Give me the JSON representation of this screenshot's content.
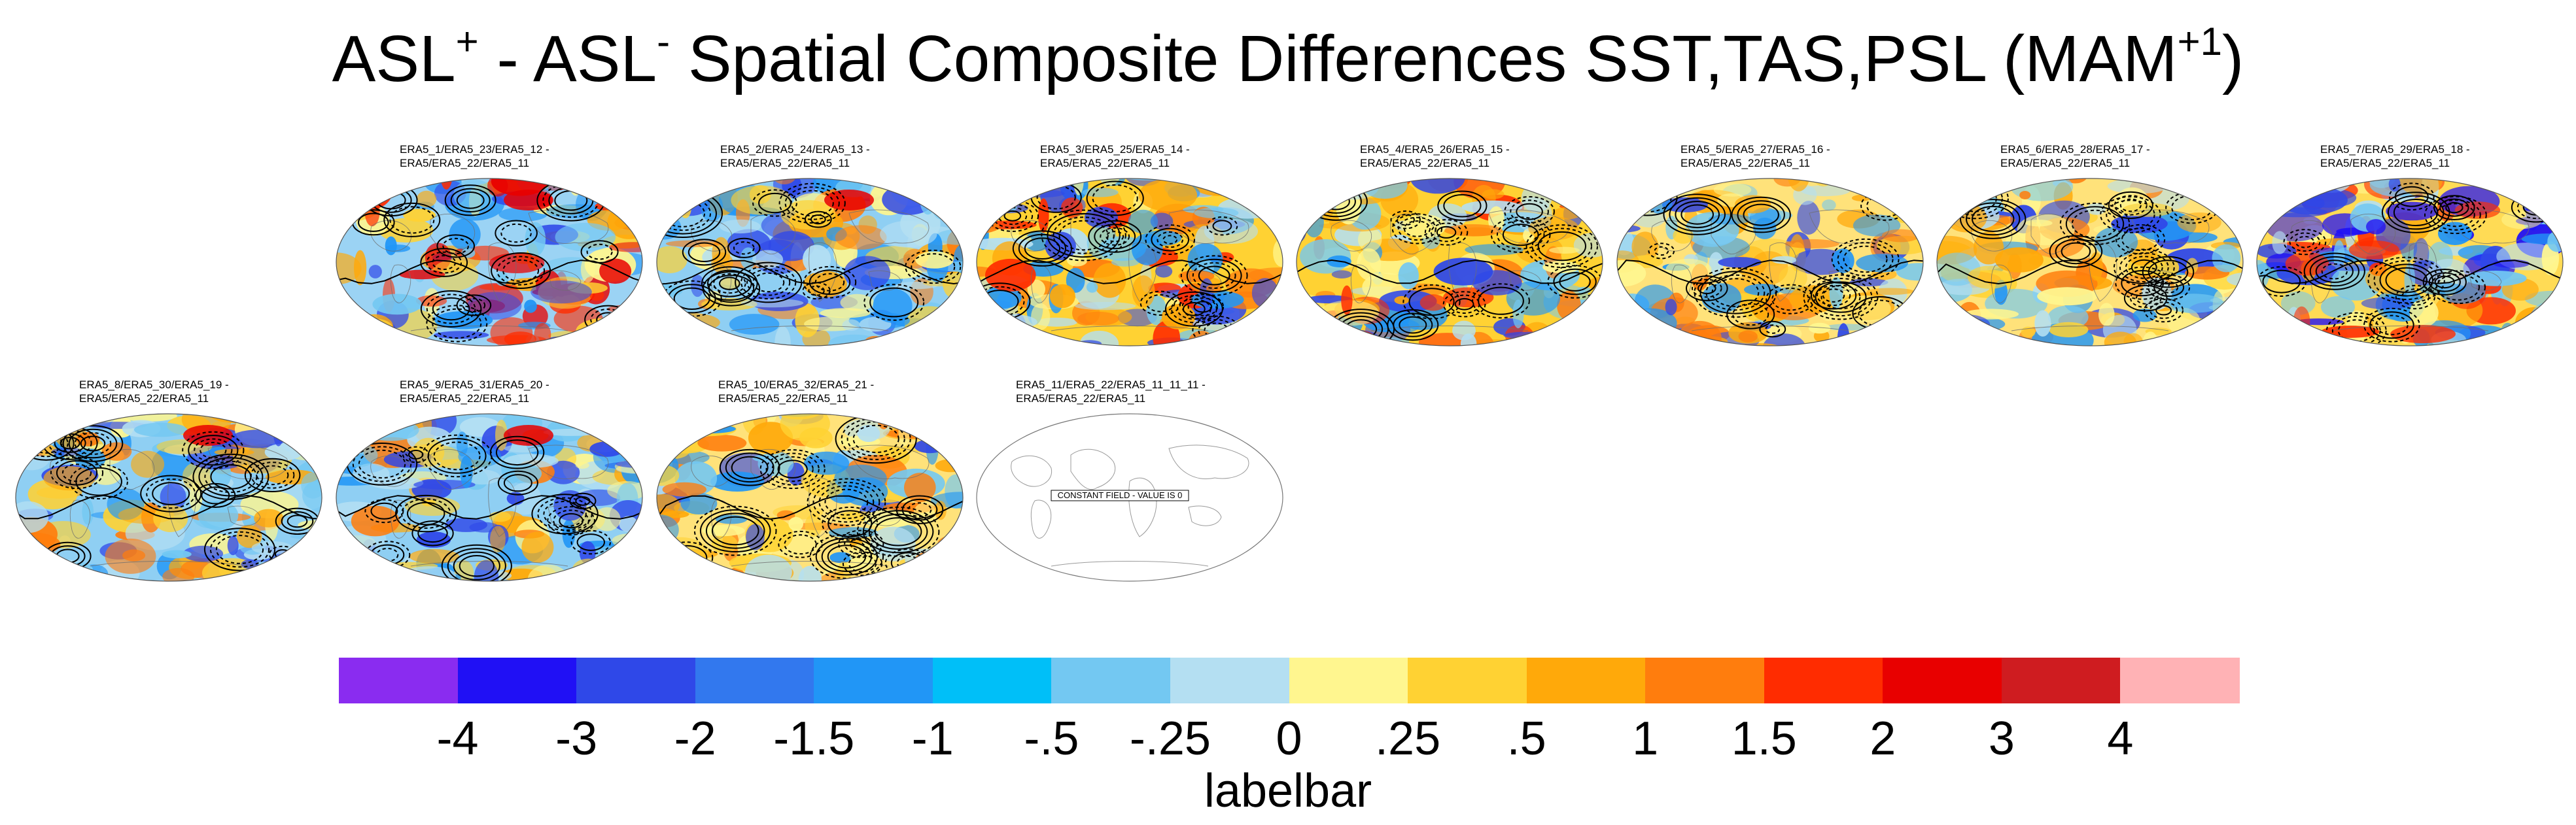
{
  "title": {
    "part1": "ASL",
    "sup1": "+",
    "part2": " - ASL",
    "sup2": "-",
    "part3": " Spatial Composite Differences SST,TAS,PSL (MAM",
    "sup3": "+1",
    "part4": ")"
  },
  "panels": [
    {
      "line1": "ERA5_1/ERA5_23/ERA5_12 -",
      "line2": "ERA5/ERA5_22/ERA5_11",
      "type": "field",
      "palette": "red-north"
    },
    {
      "line1": "ERA5_2/ERA5_24/ERA5_13 -",
      "line2": "ERA5/ERA5_22/ERA5_11",
      "type": "field",
      "palette": "blue"
    },
    {
      "line1": "ERA5_3/ERA5_25/ERA5_14 -",
      "line2": "ERA5/ERA5_22/ERA5_11",
      "type": "field",
      "palette": "warm"
    },
    {
      "line1": "ERA5_4/ERA5_26/ERA5_15 -",
      "line2": "ERA5/ERA5_22/ERA5_11",
      "type": "field",
      "palette": "warm"
    },
    {
      "line1": "ERA5_5/ERA5_27/ERA5_16 -",
      "line2": "ERA5/ERA5_22/ERA5_11",
      "type": "field",
      "palette": "mixed"
    },
    {
      "line1": "ERA5_6/ERA5_28/ERA5_17 -",
      "line2": "ERA5/ERA5_22/ERA5_11",
      "type": "field",
      "palette": "mixed"
    },
    {
      "line1": "ERA5_7/ERA5_29/ERA5_18 -",
      "line2": "ERA5/ERA5_22/ERA5_11",
      "type": "field",
      "palette": "blue-north"
    },
    {
      "line1": "ERA5_8/ERA5_30/ERA5_19 -",
      "line2": "ERA5/ERA5_22/ERA5_11",
      "type": "field",
      "palette": "blue"
    },
    {
      "line1": "ERA5_9/ERA5_31/ERA5_20 -",
      "line2": "ERA5/ERA5_22/ERA5_11",
      "type": "field",
      "palette": "blue"
    },
    {
      "line1": "ERA5_10/ERA5_32/ERA5_21 -",
      "line2": "ERA5/ERA5_22/ERA5_11",
      "type": "field",
      "palette": "mixed"
    },
    {
      "line1": "ERA5_11/ERA5_22/ERA5_11_11_11 -",
      "line2": "ERA5/ERA5_22/ERA5_11",
      "type": "constant",
      "constant_text": "CONSTANT FIELD - VALUE IS 0"
    }
  ],
  "labelbar": {
    "title": "labelbar",
    "colors": [
      "#8a2cf0",
      "#2010f5",
      "#2f48e8",
      "#3278ee",
      "#2196f6",
      "#00bff8",
      "#73c8f2",
      "#b4dff2",
      "#fff68f",
      "#ffd233",
      "#ffa90a",
      "#ff7d0d",
      "#ff2c00",
      "#e80000",
      "#cf1c20",
      "#ffb2b5"
    ],
    "ticks": [
      "-4",
      "-3",
      "-2",
      "-1.5",
      "-1",
      "-.5",
      "-.25",
      "0",
      ".25",
      ".5",
      "1",
      "1.5",
      "2",
      "3",
      "4"
    ]
  }
}
